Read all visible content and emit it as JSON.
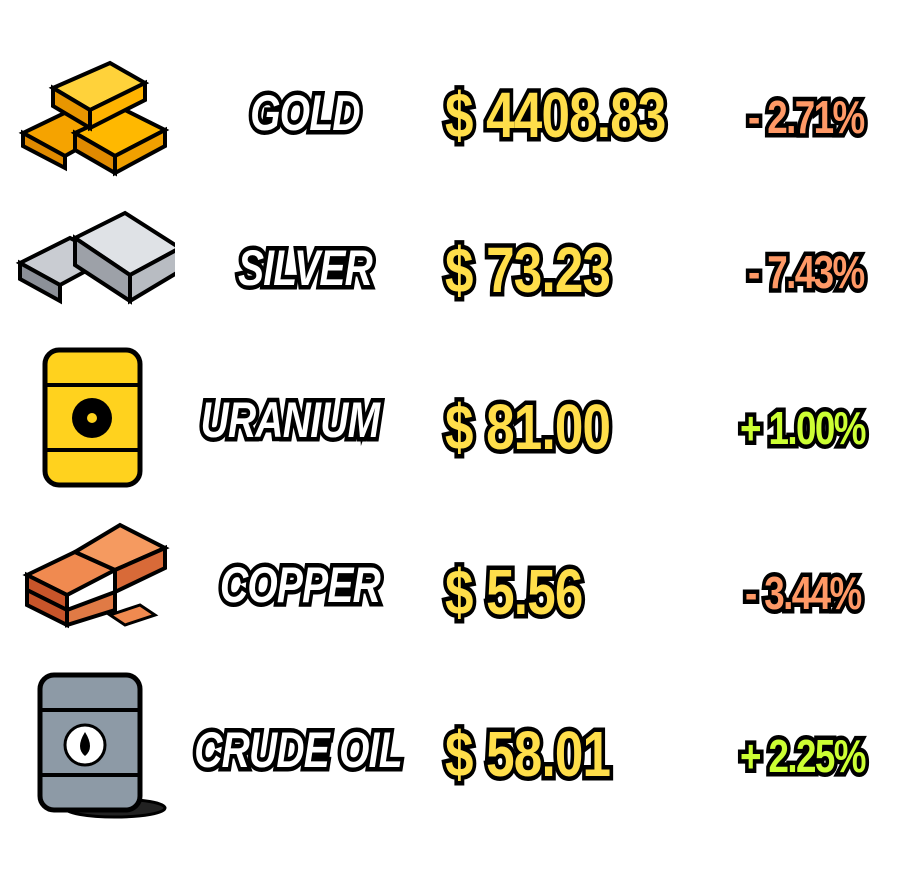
{
  "colors": {
    "price": "#ffde4a",
    "negative": "#ff9966",
    "positive": "#ccff33",
    "outline": "#000000"
  },
  "commodities": [
    {
      "name": "GOLD",
      "price": "$ 4408.83",
      "change": "- 2.71%",
      "direction": "down",
      "icon": "gold-bars-icon"
    },
    {
      "name": "SILVER",
      "price": "$ 73.23",
      "change": "- 7.43%",
      "direction": "down",
      "icon": "silver-bars-icon"
    },
    {
      "name": "URANIUM",
      "price": "$ 81.00",
      "change": "+ 1.00%",
      "direction": "up",
      "icon": "radioactive-barrel-icon"
    },
    {
      "name": "COPPER",
      "price": "$ 5.56",
      "change": "- 3.44%",
      "direction": "down",
      "icon": "copper-bars-icon"
    },
    {
      "name": "CRUDE OIL",
      "price": "$ 58.01",
      "change": "+ 2.25%",
      "direction": "up",
      "icon": "oil-barrel-icon"
    }
  ]
}
